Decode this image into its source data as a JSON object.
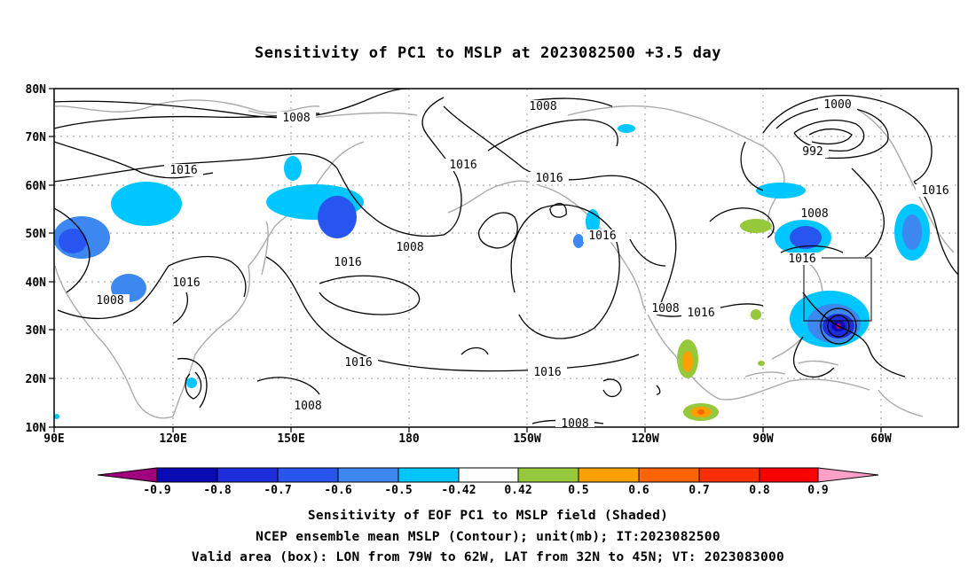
{
  "title": "Sensitivity of PC1 to MSLP at 2023082500 +3.5 day",
  "captions": [
    "Sensitivity of EOF PC1 to MSLP field (Shaded)",
    "NCEP ensemble mean MSLP (Contour); unit(mb); IT:2023082500",
    "Valid area (box): LON from 79W to 62W, LAT from 32N to 45N; VT: 2023083000"
  ],
  "lat_labels": [
    "80N",
    "70N",
    "60N",
    "50N",
    "40N",
    "30N",
    "20N",
    "10N"
  ],
  "lon_labels": [
    "90E",
    "120E",
    "150E",
    "180",
    "150W",
    "120W",
    "90W",
    "60W"
  ],
  "contour_labels": [
    "1008",
    "1016",
    "1008",
    "1016",
    "1016",
    "1008",
    "1016",
    "1008",
    "1016",
    "1016",
    "1008",
    "1016",
    "1016",
    "1008",
    "1016",
    "1016",
    "1008",
    "1000",
    "992",
    "1008",
    "1016",
    "1016",
    "1008"
  ],
  "colorbar": {
    "labels": [
      "-0.9",
      "-0.8",
      "-0.7",
      "-0.6",
      "-0.5",
      "-0.42",
      "0.42",
      "0.5",
      "0.6",
      "0.7",
      "0.8",
      "0.9"
    ],
    "colors": [
      "#a0007d",
      "#0a0ab4",
      "#1e2ddc",
      "#2855f0",
      "#3c87f0",
      "#00c6ff",
      "#ffffff",
      "#96c83c",
      "#ffa000",
      "#ff6400",
      "#ff3000",
      "#ff0000",
      "#ffa0c8"
    ]
  },
  "valid_box": {
    "lon": [
      "79W",
      "62W"
    ],
    "lat": [
      "32N",
      "45N"
    ]
  }
}
